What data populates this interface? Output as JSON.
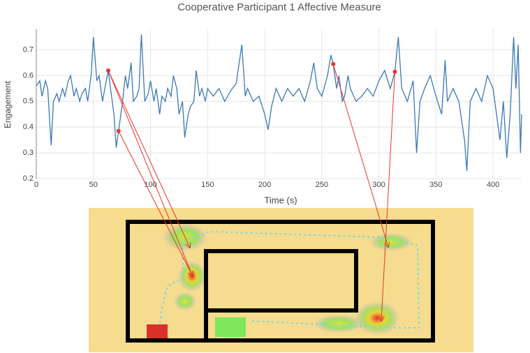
{
  "chart_data": {
    "type": "line",
    "title": "Cooperative Participant 1 Affective Measure",
    "x_label": "Time (s)",
    "y_label": "Engagement",
    "xlim": [
      0,
      425
    ],
    "ylim": [
      0.2,
      0.78
    ],
    "xticks": [
      0,
      50,
      100,
      150,
      200,
      250,
      300,
      350,
      400
    ],
    "yticks": [
      0.2,
      0.3,
      0.4,
      0.5,
      0.6,
      0.7
    ],
    "grid": true,
    "series": [
      {
        "color": "#3a78b5",
        "x": [
          0,
          3,
          5,
          8,
          10,
          13,
          15,
          18,
          20,
          23,
          25,
          28,
          30,
          33,
          35,
          38,
          40,
          43,
          45,
          48,
          50,
          53,
          55,
          58,
          60,
          63,
          65,
          68,
          70,
          72,
          75,
          78,
          80,
          83,
          85,
          88,
          90,
          92,
          95,
          98,
          100,
          103,
          105,
          108,
          110,
          113,
          115,
          118,
          120,
          123,
          125,
          128,
          130,
          133,
          135,
          138,
          140,
          143,
          145,
          148,
          150,
          155,
          160,
          165,
          170,
          175,
          180,
          183,
          185,
          190,
          195,
          200,
          203,
          206,
          210,
          215,
          220,
          225,
          230,
          235,
          240,
          243,
          246,
          250,
          255,
          258,
          260,
          263,
          265,
          268,
          270,
          273,
          275,
          280,
          285,
          290,
          295,
          300,
          305,
          310,
          314,
          317,
          320,
          325,
          330,
          333,
          336,
          340,
          345,
          350,
          355,
          358,
          360,
          365,
          370,
          375,
          377,
          380,
          385,
          390,
          395,
          400,
          403,
          406,
          409,
          412,
          415,
          418,
          420,
          422,
          424,
          425
        ],
        "values": [
          0.56,
          0.58,
          0.52,
          0.58,
          0.55,
          0.33,
          0.5,
          0.53,
          0.5,
          0.55,
          0.52,
          0.58,
          0.6,
          0.52,
          0.55,
          0.5,
          0.53,
          0.55,
          0.5,
          0.6,
          0.75,
          0.58,
          0.6,
          0.5,
          0.55,
          0.62,
          0.55,
          0.45,
          0.32,
          0.385,
          0.48,
          0.6,
          0.55,
          0.65,
          0.5,
          0.52,
          0.55,
          0.76,
          0.5,
          0.53,
          0.58,
          0.5,
          0.55,
          0.45,
          0.52,
          0.5,
          0.55,
          0.52,
          0.6,
          0.55,
          0.45,
          0.5,
          0.36,
          0.45,
          0.48,
          0.5,
          0.62,
          0.52,
          0.55,
          0.5,
          0.55,
          0.52,
          0.55,
          0.5,
          0.54,
          0.57,
          0.72,
          0.52,
          0.55,
          0.5,
          0.52,
          0.45,
          0.39,
          0.48,
          0.55,
          0.5,
          0.55,
          0.52,
          0.55,
          0.5,
          0.58,
          0.65,
          0.55,
          0.52,
          0.6,
          0.68,
          0.645,
          0.55,
          0.6,
          0.5,
          0.52,
          0.6,
          0.55,
          0.5,
          0.52,
          0.55,
          0.52,
          0.58,
          0.62,
          0.55,
          0.615,
          0.75,
          0.55,
          0.5,
          0.58,
          0.3,
          0.5,
          0.55,
          0.6,
          0.52,
          0.45,
          0.66,
          0.5,
          0.55,
          0.5,
          0.35,
          0.23,
          0.5,
          0.55,
          0.5,
          0.6,
          0.55,
          0.45,
          0.35,
          0.5,
          0.28,
          0.45,
          0.75,
          0.55,
          0.72,
          0.3,
          0.45
        ]
      }
    ],
    "highlights": {
      "color": "#e8352b",
      "x": [
        63,
        72,
        260,
        314
      ],
      "values": [
        0.62,
        0.385,
        0.645,
        0.615
      ]
    }
  }
}
